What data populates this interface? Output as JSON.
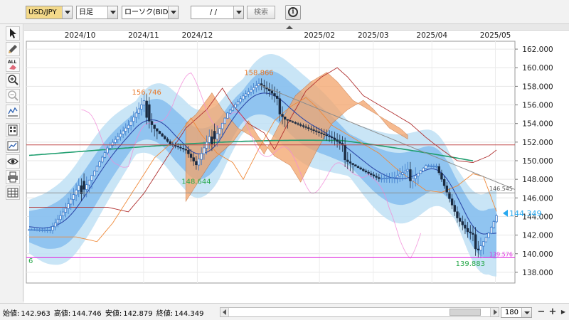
{
  "toolbar": {
    "symbol": "USD/JPY",
    "timeframe": "日足",
    "price_type": "ローソク(BID)",
    "date_value": "/ /",
    "search_label": "検索",
    "info_glyph": "i"
  },
  "tools": [
    {
      "name": "cursor-icon"
    },
    {
      "name": "pencil-icon"
    },
    {
      "name": "eraser-all-icon",
      "label": "ALL"
    },
    {
      "name": "zoom-in-icon"
    },
    {
      "name": "zoom-out-icon"
    },
    {
      "name": "indicator-icon"
    },
    {
      "name": "grid-calc-icon"
    },
    {
      "name": "chart-settings-icon"
    },
    {
      "name": "eye-icon"
    },
    {
      "name": "print-icon"
    },
    {
      "name": "table-icon"
    }
  ],
  "status": {
    "open_label": "始値:",
    "open": "142.963",
    "high_label": "高値:",
    "high": "144.746",
    "low_label": "安値:",
    "low": "142.879",
    "close_label": "終値:",
    "close": "144.349",
    "period": "180",
    "zoom_in": "+",
    "zoom_out": "−"
  },
  "chart_data": {
    "type": "candlestick",
    "x_labels": [
      "2024/10",
      "2024/11",
      "2024/12",
      "2025/02",
      "2025/03",
      "2025/04",
      "2025/05"
    ],
    "y_ticks": [
      "162.000",
      "160.000",
      "158.000",
      "156.000",
      "154.000",
      "152.000",
      "150.000",
      "148.000",
      "146.000",
      "144.000",
      "142.000",
      "140.000",
      "138.000"
    ],
    "ylim": [
      137.0,
      163.0
    ],
    "annotations": {
      "high_1": "156.746",
      "high_2": "158.866",
      "low_1": "148.644",
      "low_2": "139.883",
      "trendline_value": "146.545",
      "support_value": "139.576",
      "current_price": "144.349",
      "left_edge_label": "6"
    },
    "colors": {
      "bull": "#3a78c8",
      "bear": "#1a2a40",
      "bollinger_outer": "#bfe0f5",
      "bollinger_inner": "#7cb8ee",
      "ma_mid": "#2e4aa8",
      "ma_long": "#1f9e6f",
      "cloud": "#f4a46a",
      "chikou": "#f28ad8",
      "kijun": "#b03030",
      "tenkan": "#f08a3a",
      "support": "#e032e0",
      "current": "#29a9f0"
    }
  }
}
